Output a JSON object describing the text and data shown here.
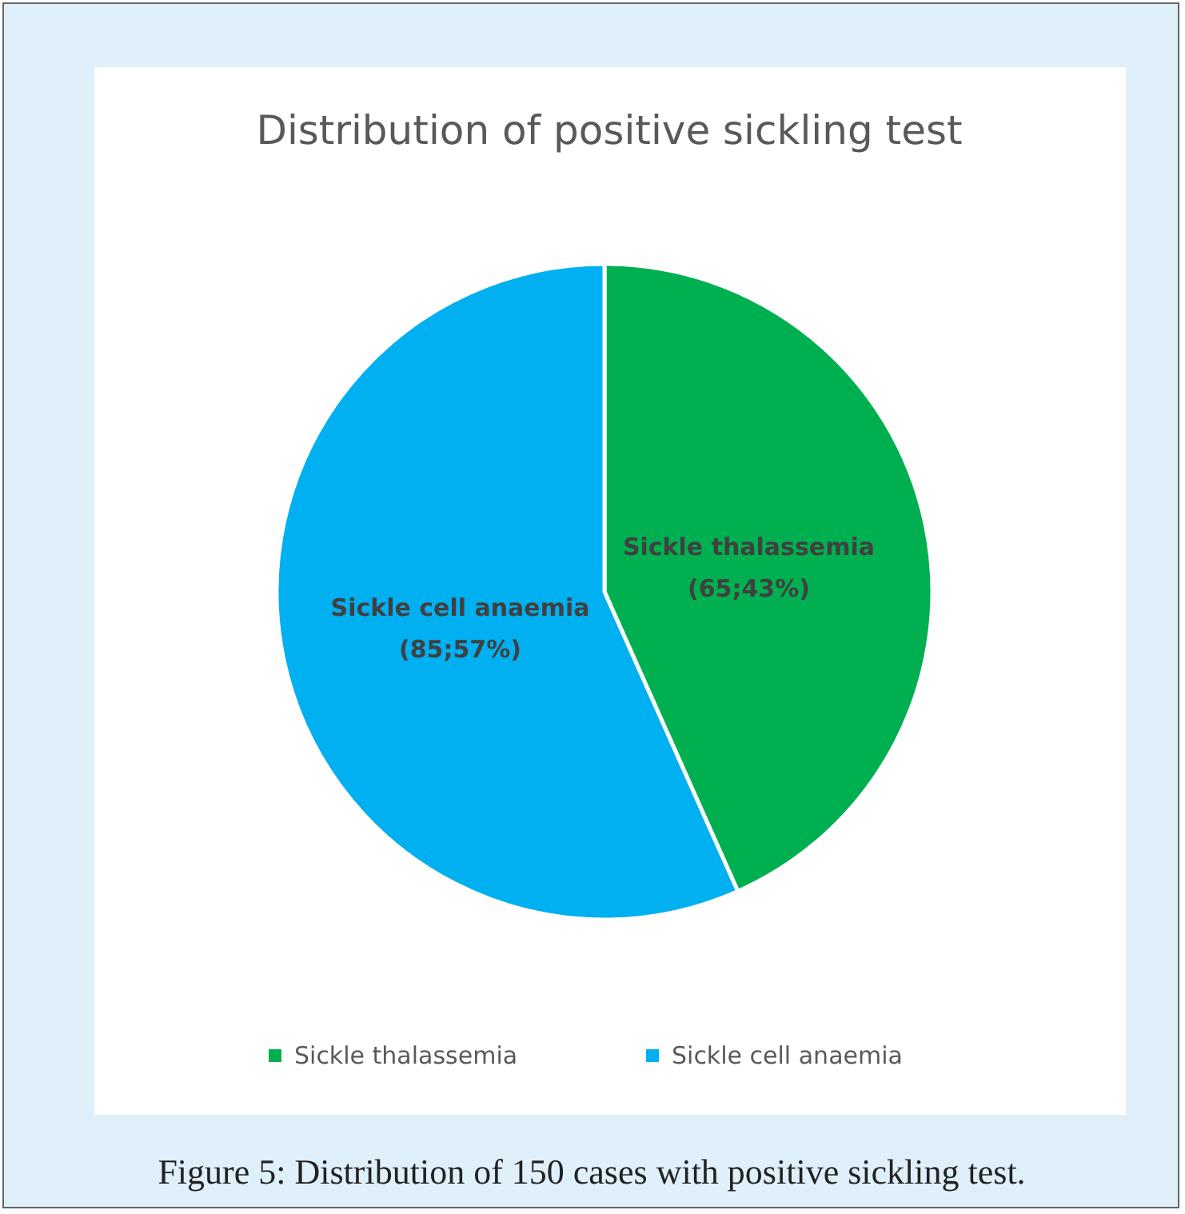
{
  "chart_data": {
    "type": "pie",
    "title": "Distribution of positive sickling test",
    "categories": [
      "Sickle thalassemia",
      "Sickle cell anaemia"
    ],
    "values": [
      65,
      85
    ],
    "colors": [
      "#00b050",
      "#00b0f0"
    ],
    "value_labels": [
      "(65;43%)",
      "(85;57%)"
    ],
    "legend": "bottom",
    "annotations": [
      "Figure 5: Distribution of 150 cases with positive sickling test."
    ]
  }
}
